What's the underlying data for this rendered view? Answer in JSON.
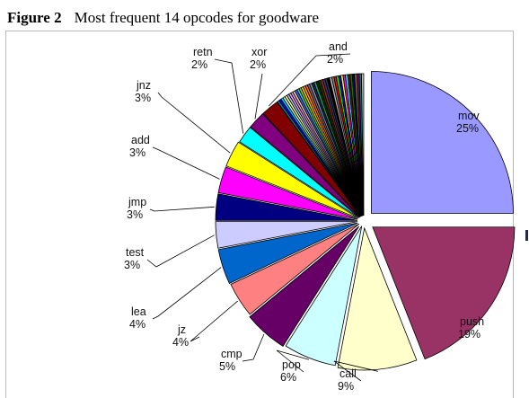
{
  "figure": {
    "number": "Figure 2",
    "caption": "Most frequent 14 opcodes for goodware"
  },
  "chart_data": {
    "type": "pie",
    "title": "Most frequent 14 opcodes for goodware",
    "labeled_slices": [
      {
        "name": "mov",
        "value": 25,
        "label": "25%",
        "color": "#9999ff"
      },
      {
        "name": "push",
        "value": 19,
        "label": "19%",
        "color": "#993366"
      },
      {
        "name": "call",
        "value": 9,
        "label": "9%",
        "color": "#ffffcc"
      },
      {
        "name": "pop",
        "value": 6,
        "label": "6%",
        "color": "#ccffff"
      },
      {
        "name": "cmp",
        "value": 5,
        "label": "5%",
        "color": "#660066"
      },
      {
        "name": "jz",
        "value": 4,
        "label": "4%",
        "color": "#ff8080"
      },
      {
        "name": "lea",
        "value": 4,
        "label": "4%",
        "color": "#0066cc"
      },
      {
        "name": "test",
        "value": 3,
        "label": "3%",
        "color": "#ccccff"
      },
      {
        "name": "jmp",
        "value": 3,
        "label": "3%",
        "color": "#000080"
      },
      {
        "name": "add",
        "value": 3,
        "label": "3%",
        "color": "#ff00ff"
      },
      {
        "name": "jnz",
        "value": 3,
        "label": "3%",
        "color": "#ffff00"
      },
      {
        "name": "retn",
        "value": 2,
        "label": "2%",
        "color": "#00ffff"
      },
      {
        "name": "xor",
        "value": 2,
        "label": "2%",
        "color": "#800080"
      },
      {
        "name": "and",
        "value": 2,
        "label": "2%",
        "color": "#800000"
      }
    ],
    "unlabeled_remainder": {
      "value": 10,
      "colors": [
        "#008080",
        "#0000ff",
        "#00ccff",
        "#ccffcc",
        "#ffff99",
        "#99ccff",
        "#ff99cc",
        "#cc99ff",
        "#ffcc99",
        "#3366ff",
        "#33cccc",
        "#99cc00",
        "#ffcc00",
        "#ff9900",
        "#ff6600",
        "#666699",
        "#969696",
        "#003366",
        "#339966",
        "#003300",
        "#333300",
        "#993300",
        "#333399",
        "#333333",
        "#000000",
        "#c0c0c0",
        "#808080",
        "#ff0000",
        "#00ff00",
        "#0000ff",
        "#ffff00",
        "#ff00ff",
        "#00ffff",
        "#800000",
        "#008000",
        "#000080",
        "#808000",
        "#800080",
        "#008080",
        "#c0c0c0"
      ]
    },
    "start_angle_deg": 0,
    "direction": "clockwise",
    "legend": "none"
  }
}
